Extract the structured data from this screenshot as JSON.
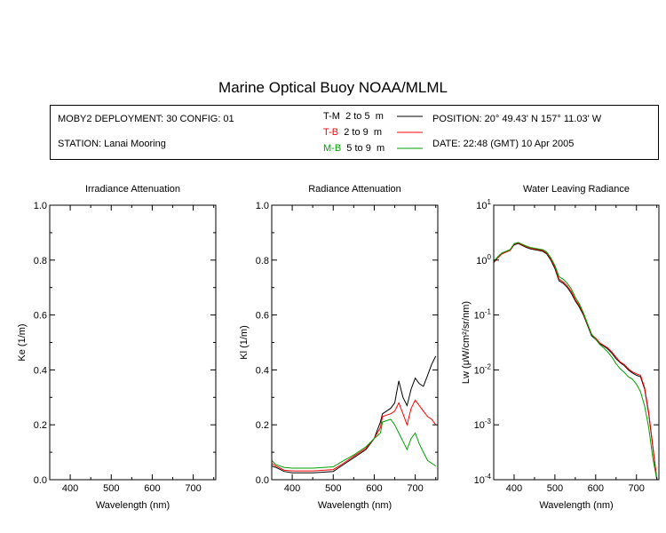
{
  "title": "Marine Optical Buoy NOAA/MLML",
  "info": {
    "deployment": "MOBY2 DEPLOYMENT: 30 CONFIG: 01",
    "station": "STATION: Lanai Mooring",
    "position": "POSITION: 20° 49.43' N   157° 11.03' W",
    "date": "DATE: 22:48 (GMT) 10 Apr 2005",
    "legend": [
      {
        "code": "T-M",
        "range": "2 to 5",
        "unit": "m",
        "color": "#000000"
      },
      {
        "code": "T-B",
        "range": "2 to 9",
        "unit": "m",
        "color": "#ff0000"
      },
      {
        "code": "M-B",
        "range": "5 to 9",
        "unit": "m",
        "color": "#00a000"
      }
    ]
  },
  "chart_data": [
    {
      "type": "line",
      "title": "Irradiance Attenuation",
      "xlabel": "Wavelength (nm)",
      "ylabel": "Ke  (1/m)",
      "xlim": [
        350,
        755
      ],
      "ylim": [
        0,
        1
      ],
      "xticks": [
        "400",
        "500",
        "600",
        "700"
      ],
      "yticks": [
        "0.0",
        "0.2",
        "0.4",
        "0.6",
        "0.8",
        "1.0"
      ],
      "series": []
    },
    {
      "type": "line",
      "title": "Radiance Attenuation",
      "xlabel": "Wavelength (nm)",
      "ylabel": "Kl  (1/m)",
      "xlim": [
        350,
        755
      ],
      "ylim": [
        0,
        1
      ],
      "xticks": [
        "400",
        "500",
        "600",
        "700"
      ],
      "yticks": [
        "0.0",
        "0.2",
        "0.4",
        "0.6",
        "0.8",
        "1.0"
      ],
      "series": [
        {
          "name": "T-M",
          "color": "#000000",
          "x": [
            350,
            360,
            380,
            400,
            450,
            500,
            520,
            550,
            580,
            600,
            615,
            620,
            640,
            650,
            660,
            670,
            680,
            690,
            700,
            710,
            720,
            730,
            740,
            750
          ],
          "y": [
            0.05,
            0.045,
            0.03,
            0.025,
            0.025,
            0.03,
            0.05,
            0.08,
            0.11,
            0.15,
            0.21,
            0.24,
            0.26,
            0.28,
            0.36,
            0.3,
            0.27,
            0.33,
            0.37,
            0.35,
            0.34,
            0.38,
            0.42,
            0.45
          ]
        },
        {
          "name": "T-B",
          "color": "#ff0000",
          "x": [
            350,
            360,
            380,
            400,
            450,
            500,
            520,
            550,
            580,
            600,
            615,
            620,
            640,
            650,
            660,
            670,
            680,
            690,
            700,
            710,
            720,
            730,
            740,
            750
          ],
          "y": [
            0.06,
            0.05,
            0.035,
            0.032,
            0.032,
            0.037,
            0.055,
            0.085,
            0.115,
            0.15,
            0.19,
            0.23,
            0.24,
            0.25,
            0.28,
            0.24,
            0.2,
            0.26,
            0.29,
            0.27,
            0.25,
            0.23,
            0.22,
            0.2
          ]
        },
        {
          "name": "M-B",
          "color": "#00a000",
          "x": [
            350,
            360,
            380,
            400,
            450,
            500,
            520,
            550,
            580,
            600,
            615,
            620,
            640,
            650,
            660,
            670,
            680,
            690,
            700,
            710,
            720,
            730,
            740,
            750
          ],
          "y": [
            0.07,
            0.055,
            0.045,
            0.042,
            0.042,
            0.047,
            0.065,
            0.09,
            0.12,
            0.15,
            0.17,
            0.21,
            0.22,
            0.2,
            0.17,
            0.14,
            0.11,
            0.15,
            0.17,
            0.13,
            0.1,
            0.07,
            0.06,
            0.05
          ]
        }
      ]
    },
    {
      "type": "line",
      "title": "Water Leaving Radiance",
      "xlabel": "Wavelength (nm)",
      "ylabel": "Lw  (μW/cm²/sr/nm)",
      "yscale": "log",
      "xlim": [
        350,
        755
      ],
      "ylim": [
        0.0001,
        10
      ],
      "xticks": [
        "400",
        "500",
        "600",
        "700"
      ],
      "yticks": [
        {
          "base": "10",
          "exp": "-4",
          "value": 0.0001
        },
        {
          "base": "10",
          "exp": "-3",
          "value": 0.001
        },
        {
          "base": "10",
          "exp": "-2",
          "value": 0.01
        },
        {
          "base": "10",
          "exp": "-1",
          "value": 0.1
        },
        {
          "base": "10",
          "exp": "0",
          "value": 1
        },
        {
          "base": "10",
          "exp": "1",
          "value": 10
        }
      ],
      "series": [
        {
          "name": "T-M",
          "color": "#000000",
          "x": [
            350,
            360,
            370,
            380,
            390,
            400,
            410,
            420,
            430,
            440,
            450,
            460,
            470,
            480,
            490,
            500,
            510,
            520,
            530,
            540,
            550,
            560,
            570,
            580,
            590,
            600,
            610,
            620,
            630,
            640,
            650,
            660,
            670,
            680,
            690,
            700,
            710,
            720,
            730,
            740,
            750
          ],
          "y": [
            0.9,
            1.1,
            1.3,
            1.4,
            1.5,
            1.9,
            2.0,
            1.85,
            1.7,
            1.6,
            1.55,
            1.5,
            1.45,
            1.3,
            1.0,
            0.7,
            0.42,
            0.38,
            0.32,
            0.25,
            0.18,
            0.14,
            0.1,
            0.065,
            0.042,
            0.036,
            0.03,
            0.027,
            0.024,
            0.02,
            0.016,
            0.0135,
            0.012,
            0.01,
            0.0088,
            0.008,
            0.0075,
            0.0045,
            0.0016,
            0.0004,
            0.0001
          ]
        },
        {
          "name": "T-B",
          "color": "#ff0000",
          "x": [
            350,
            360,
            370,
            380,
            390,
            400,
            410,
            420,
            430,
            440,
            450,
            460,
            470,
            480,
            490,
            500,
            510,
            520,
            530,
            540,
            550,
            560,
            570,
            580,
            590,
            600,
            610,
            620,
            630,
            640,
            650,
            660,
            670,
            680,
            690,
            700,
            710,
            720,
            730,
            740,
            750
          ],
          "y": [
            0.9,
            1.1,
            1.3,
            1.4,
            1.5,
            1.95,
            2.05,
            1.9,
            1.75,
            1.65,
            1.6,
            1.55,
            1.5,
            1.35,
            1.05,
            0.75,
            0.45,
            0.4,
            0.34,
            0.27,
            0.19,
            0.15,
            0.105,
            0.068,
            0.044,
            0.038,
            0.031,
            0.028,
            0.025,
            0.021,
            0.017,
            0.014,
            0.0125,
            0.0105,
            0.0092,
            0.0085,
            0.008,
            0.0048,
            0.0017,
            0.00042,
            0.0001
          ]
        },
        {
          "name": "M-B",
          "color": "#00a000",
          "x": [
            350,
            360,
            370,
            380,
            390,
            400,
            410,
            420,
            430,
            440,
            450,
            460,
            470,
            480,
            490,
            500,
            510,
            520,
            530,
            540,
            550,
            560,
            570,
            580,
            590,
            600,
            610,
            620,
            630,
            640,
            650,
            660,
            670,
            680,
            690,
            700,
            710,
            720,
            730,
            740,
            750
          ],
          "y": [
            0.95,
            1.15,
            1.35,
            1.45,
            1.55,
            2.0,
            2.1,
            1.95,
            1.8,
            1.7,
            1.65,
            1.6,
            1.55,
            1.4,
            1.1,
            0.8,
            0.5,
            0.45,
            0.38,
            0.3,
            0.21,
            0.16,
            0.11,
            0.07,
            0.045,
            0.036,
            0.029,
            0.025,
            0.021,
            0.017,
            0.013,
            0.0105,
            0.009,
            0.0075,
            0.0068,
            0.0055,
            0.004,
            0.0022,
            0.0009,
            0.00025,
            0.0001
          ]
        }
      ]
    }
  ]
}
